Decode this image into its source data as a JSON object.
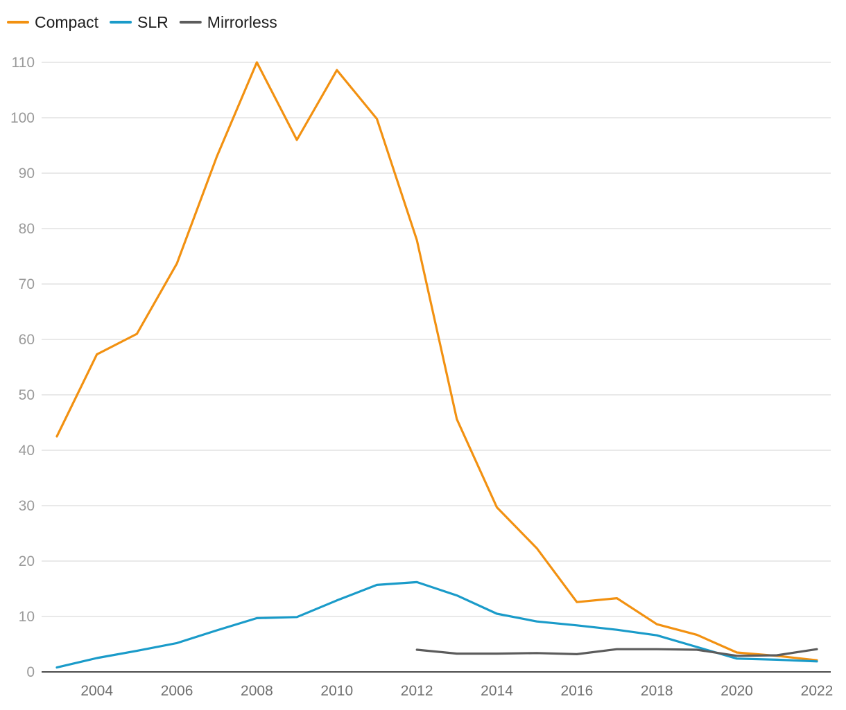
{
  "chart_data": {
    "type": "line",
    "title": "",
    "xlabel": "",
    "ylabel": "",
    "legend_position": "top-left",
    "grid": true,
    "xlim": [
      2003,
      2022
    ],
    "ylim": [
      0,
      110
    ],
    "x_ticks": [
      2004,
      2006,
      2008,
      2010,
      2012,
      2014,
      2016,
      2018,
      2020,
      2022
    ],
    "y_ticks": [
      0,
      10,
      20,
      30,
      40,
      50,
      60,
      70,
      80,
      90,
      100,
      110
    ],
    "x": [
      2003,
      2004,
      2005,
      2006,
      2007,
      2008,
      2009,
      2010,
      2011,
      2012,
      2013,
      2014,
      2015,
      2016,
      2017,
      2018,
      2019,
      2020,
      2021,
      2022
    ],
    "series": [
      {
        "name": "Compact",
        "color": "#f29111",
        "values": [
          42.5,
          57.3,
          61.0,
          73.7,
          93.0,
          110.0,
          96.0,
          108.6,
          99.8,
          77.9,
          45.6,
          29.7,
          22.3,
          12.6,
          13.3,
          8.6,
          6.7,
          3.5,
          2.9,
          2.1
        ]
      },
      {
        "name": "SLR",
        "color": "#1a9bc9",
        "values": [
          0.8,
          2.5,
          3.8,
          5.2,
          7.5,
          9.7,
          9.9,
          12.9,
          15.7,
          16.2,
          13.8,
          10.5,
          9.1,
          8.4,
          7.6,
          6.6,
          4.5,
          2.4,
          2.2,
          1.9
        ]
      },
      {
        "name": "Mirrorless",
        "color": "#5c5c5c",
        "values": [
          null,
          null,
          null,
          null,
          null,
          null,
          null,
          null,
          null,
          4.0,
          3.3,
          3.3,
          3.4,
          3.2,
          4.1,
          4.1,
          4.0,
          2.9,
          3.0,
          4.1
        ]
      }
    ]
  }
}
